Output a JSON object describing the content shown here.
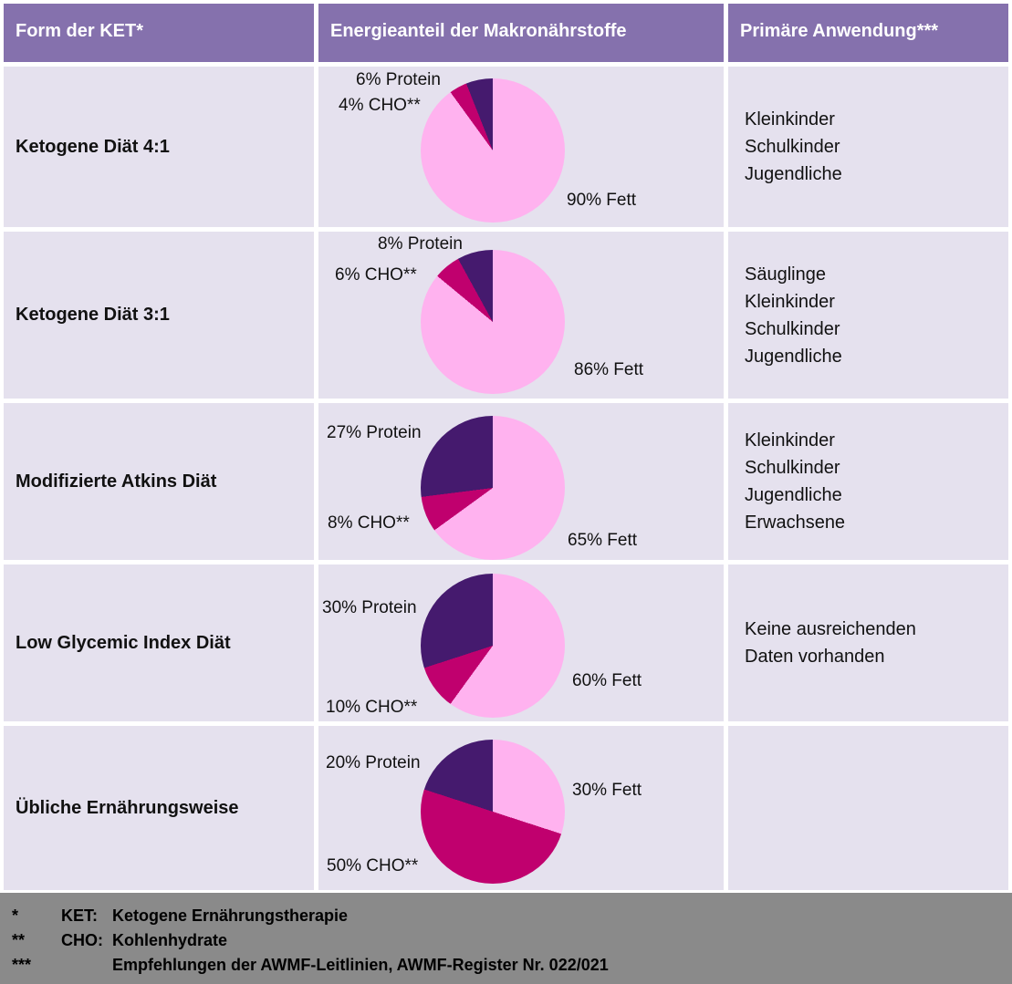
{
  "colors": {
    "header_bg": "#8571ad",
    "header_text": "#ffffff",
    "row_bg": "#e5e1ee",
    "footer_bg": "#8a8a8a",
    "body_text": "#111111",
    "fett": "#ffb2ef",
    "cho": "#c0006e",
    "protein": "#451a6e"
  },
  "header": {
    "columns": [
      "Form der KET*",
      "Energieanteil der Makronährstoffe",
      "Primäre Anwendung***"
    ]
  },
  "rows": [
    {
      "form": "Ketogene Diät 4:1",
      "labels": {
        "protein": "6% Protein",
        "cho": "4% CHO**",
        "fett": "90% Fett"
      },
      "anwendung": [
        "Kleinkinder",
        "Schulkinder",
        "Jugendliche"
      ]
    },
    {
      "form": "Ketogene Diät 3:1",
      "labels": {
        "protein": "8% Protein",
        "cho": "6% CHO**",
        "fett": "86% Fett"
      },
      "anwendung": [
        "Säuglinge",
        "Kleinkinder",
        "Schulkinder",
        "Jugendliche"
      ]
    },
    {
      "form": "Modifizierte Atkins Diät",
      "labels": {
        "protein": "27% Protein",
        "cho": "8% CHO**",
        "fett": "65% Fett"
      },
      "anwendung": [
        "Kleinkinder",
        "Schulkinder",
        "Jugendliche",
        "Erwachsene"
      ]
    },
    {
      "form": "Low Glycemic Index Diät",
      "labels": {
        "protein": "30% Protein",
        "cho": "10% CHO**",
        "fett": "60% Fett"
      },
      "anwendung": [
        "Keine ausreichenden",
        "Daten vorhanden"
      ]
    },
    {
      "form": "Übliche Ernährungsweise",
      "labels": {
        "protein": "20% Protein",
        "cho": "50% CHO**",
        "fett": "30% Fett"
      },
      "anwendung": []
    }
  ],
  "chart_data": [
    {
      "type": "pie",
      "title": "Ketogene Diät 4:1",
      "labels": [
        "Fett",
        "CHO",
        "Protein"
      ],
      "values": [
        90,
        4,
        6
      ],
      "unit": "%",
      "colors": [
        "#ffb2ef",
        "#c0006e",
        "#451a6e"
      ],
      "order": "clockwise-from-top"
    },
    {
      "type": "pie",
      "title": "Ketogene Diät 3:1",
      "labels": [
        "Fett",
        "CHO",
        "Protein"
      ],
      "values": [
        86,
        6,
        8
      ],
      "unit": "%",
      "colors": [
        "#ffb2ef",
        "#c0006e",
        "#451a6e"
      ],
      "order": "clockwise-from-top"
    },
    {
      "type": "pie",
      "title": "Modifizierte Atkins Diät",
      "labels": [
        "Fett",
        "CHO",
        "Protein"
      ],
      "values": [
        65,
        8,
        27
      ],
      "unit": "%",
      "colors": [
        "#ffb2ef",
        "#c0006e",
        "#451a6e"
      ],
      "order": "clockwise-from-top"
    },
    {
      "type": "pie",
      "title": "Low Glycemic Index Diät",
      "labels": [
        "Fett",
        "CHO",
        "Protein"
      ],
      "values": [
        60,
        10,
        30
      ],
      "unit": "%",
      "colors": [
        "#ffb2ef",
        "#c0006e",
        "#451a6e"
      ],
      "order": "clockwise-from-top"
    },
    {
      "type": "pie",
      "title": "Übliche Ernährungsweise",
      "labels": [
        "Fett",
        "CHO",
        "Protein"
      ],
      "values": [
        30,
        50,
        20
      ],
      "unit": "%",
      "colors": [
        "#ffb2ef",
        "#c0006e",
        "#451a6e"
      ],
      "order": "clockwise-from-top"
    }
  ],
  "footnotes": [
    {
      "marker": "*",
      "abbr": "KET:",
      "text": "Ketogene Ernährungstherapie"
    },
    {
      "marker": "**",
      "abbr": "CHO:",
      "text": "Kohlenhydrate"
    },
    {
      "marker": "***",
      "abbr": "",
      "text": "Empfehlungen der AWMF-Leitlinien, AWMF-Register Nr. 022/021"
    }
  ]
}
